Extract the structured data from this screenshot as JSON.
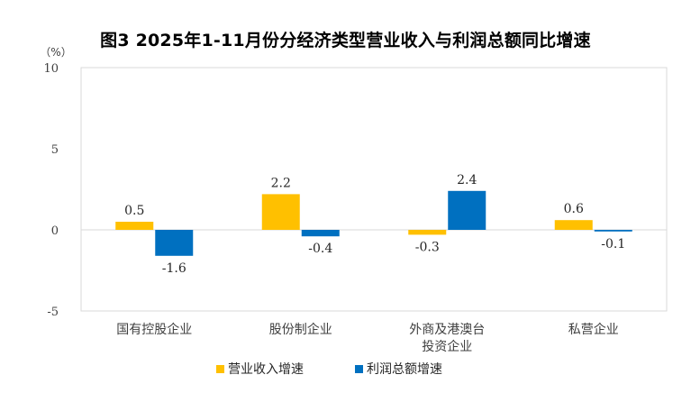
{
  "chart_data": {
    "type": "bar",
    "title": "图3 2025年1-11月份分经济类型营业收入与利润总额同比增速",
    "unit_label": "（%）",
    "categories": [
      "国有控股企业",
      "股份制企业",
      "外商及港澳台|投资企业",
      "私营企业"
    ],
    "series": [
      {
        "name": "营业收入增速",
        "color": "#FFC000",
        "values": [
          0.5,
          2.2,
          -0.3,
          0.6
        ],
        "labels": [
          "0.5",
          "2.2",
          "-0.3",
          "0.6"
        ]
      },
      {
        "name": "利润总额增速",
        "color": "#0070C0",
        "values": [
          -1.6,
          -0.4,
          2.4,
          -0.1
        ],
        "labels": [
          "-1.6",
          "-0.4",
          "2.4",
          "-0.1"
        ]
      }
    ],
    "ylim": [
      -5,
      10
    ],
    "yticks": [
      10,
      5,
      0,
      -5
    ],
    "ytick_labels": [
      "10",
      "5",
      "0",
      "-5"
    ],
    "xlabel": "",
    "ylabel": "",
    "grid": false,
    "legend": "bottom"
  }
}
